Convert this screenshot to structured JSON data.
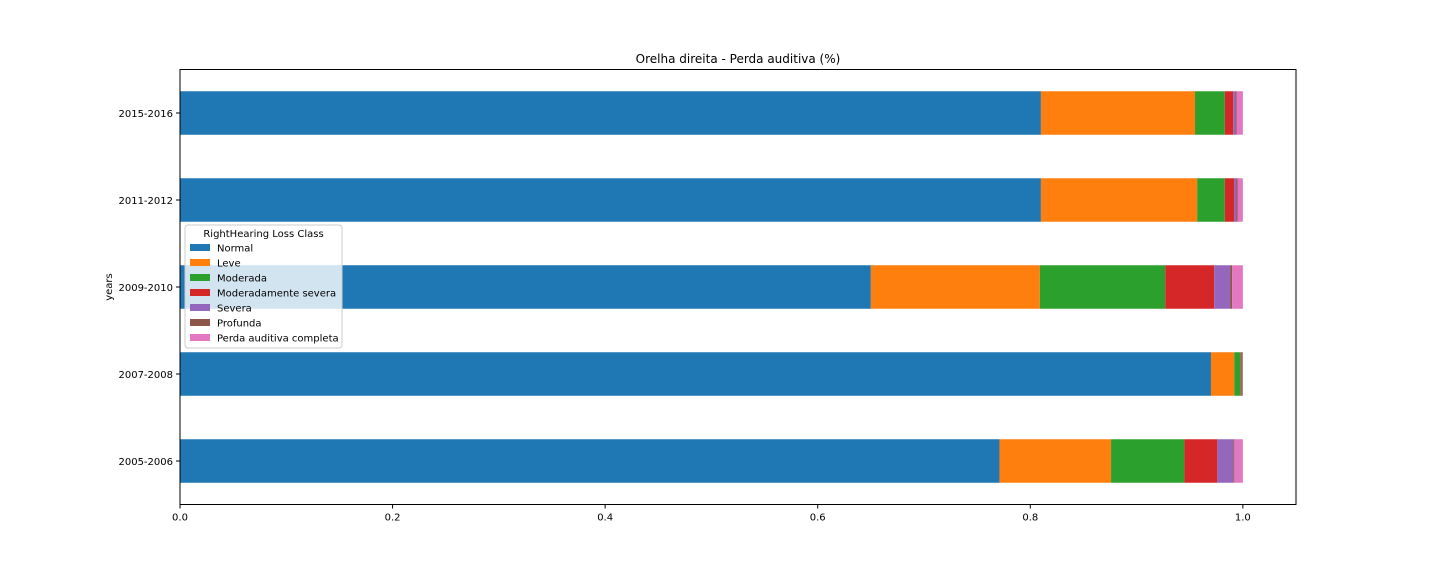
{
  "chart_data": {
    "type": "bar",
    "orientation": "horizontal",
    "stacked": true,
    "title": "Orelha direita - Perda auditiva (%)",
    "xlabel": "",
    "ylabel": "years",
    "xlim": [
      0,
      1.05
    ],
    "xticks": [
      "0.0",
      "0.2",
      "0.4",
      "0.6",
      "0.8",
      "1.0"
    ],
    "grid": false,
    "legend_title": "RightHearing Loss Class",
    "legend_placement": "center-left",
    "categories": [
      "2005-2006",
      "2007-2008",
      "2009-2010",
      "2011-2012",
      "2015-2016"
    ],
    "series": [
      {
        "name": "Normal",
        "color": "#1f77b4",
        "values": [
          0.771,
          0.97,
          0.65,
          0.81,
          0.81
        ]
      },
      {
        "name": "Leve",
        "color": "#ff7f0e",
        "values": [
          0.105,
          0.022,
          0.159,
          0.147,
          0.145
        ]
      },
      {
        "name": "Moderada",
        "color": "#2ca02c",
        "values": [
          0.069,
          0.006,
          0.118,
          0.026,
          0.028
        ]
      },
      {
        "name": "Moderadamente severa",
        "color": "#d62728",
        "values": [
          0.031,
          0.001,
          0.046,
          0.009,
          0.008
        ]
      },
      {
        "name": "Severa",
        "color": "#9467bd",
        "values": [
          0.015,
          0.0005,
          0.015,
          0.002,
          0.002
        ]
      },
      {
        "name": "Profunda",
        "color": "#8c564b",
        "values": [
          0.001,
          0.0005,
          0.002,
          0.001,
          0.001
        ]
      },
      {
        "name": "Perda auditiva completa",
        "color": "#e377c2",
        "values": [
          0.008,
          0.0,
          0.01,
          0.005,
          0.006
        ]
      }
    ]
  }
}
